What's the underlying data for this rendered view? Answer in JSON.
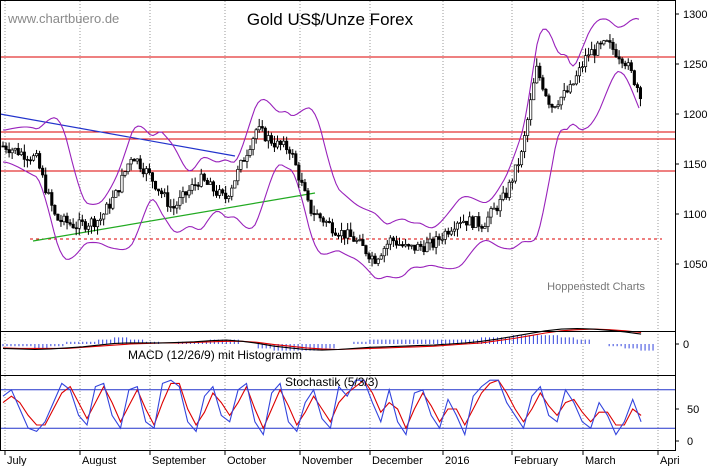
{
  "header": {
    "watermark": "www.chartbuero.de",
    "title": "Gold US$/Unze Forex"
  },
  "source_label": "Hoppenstedt Charts",
  "macd": {
    "label": "MACD (12/26/9) mit Histogramm",
    "tick_labels": [
      "0"
    ]
  },
  "stochastic": {
    "label": "Stochastik (5/3/3)",
    "tick_labels": [
      "50",
      "0"
    ]
  },
  "colors": {
    "candles": "#000000",
    "bollinger": "#9922bb",
    "resistance": "#dd0000",
    "downtrend": "#2233cc",
    "uptrend": "#22aa22",
    "macd_line": "#000000",
    "signal_line": "#dd0000",
    "histogram": "#3344dd",
    "stoch_k": "#3344dd",
    "stoch_d": "#dd0000",
    "stoch_levels": "#2233cc",
    "grid": "#999999"
  },
  "chart_data": [
    {
      "type": "candlestick",
      "title": "Gold US$/Unze Forex",
      "y_ticks": [
        1050,
        1100,
        1150,
        1200,
        1250,
        1300
      ],
      "ylim": [
        1020,
        1310
      ],
      "x_ticks": [
        "July",
        "August",
        "September",
        "October",
        "November",
        "December",
        "2016",
        "February",
        "March",
        "Apri"
      ],
      "horizontal_lines": [
        1257,
        1182,
        1175,
        1143
      ],
      "support_dashed": 1075,
      "trend_down": {
        "from": [
          "July",
          1200
        ],
        "to": [
          "October",
          1158
        ]
      },
      "trend_up": {
        "from": [
          "July",
          1073
        ],
        "to": [
          "November",
          1121
        ]
      },
      "price_path": [
        [
          "2015-07-01",
          1168
        ],
        [
          "2015-07-14",
          1155
        ],
        [
          "2015-07-22",
          1095
        ],
        [
          "2015-07-31",
          1088
        ],
        [
          "2015-08-10",
          1095
        ],
        [
          "2015-08-17",
          1120
        ],
        [
          "2015-08-24",
          1160
        ],
        [
          "2015-09-01",
          1138
        ],
        [
          "2015-09-10",
          1105
        ],
        [
          "2015-09-21",
          1135
        ],
        [
          "2015-10-01",
          1115
        ],
        [
          "2015-10-06",
          1140
        ],
        [
          "2015-10-14",
          1185
        ],
        [
          "2015-10-22",
          1170
        ],
        [
          "2015-10-28",
          1165
        ],
        [
          "2015-11-05",
          1105
        ],
        [
          "2015-11-16",
          1085
        ],
        [
          "2015-11-24",
          1075
        ],
        [
          "2015-12-03",
          1055
        ],
        [
          "2015-12-10",
          1075
        ],
        [
          "2015-12-17",
          1065
        ],
        [
          "2015-12-28",
          1070
        ],
        [
          "2016-01-08",
          1095
        ],
        [
          "2016-01-19",
          1090
        ],
        [
          "2016-01-29",
          1118
        ],
        [
          "2016-02-05",
          1160
        ],
        [
          "2016-02-11",
          1245
        ],
        [
          "2016-02-17",
          1208
        ],
        [
          "2016-02-25",
          1225
        ],
        [
          "2016-03-03",
          1260
        ],
        [
          "2016-03-11",
          1270
        ],
        [
          "2016-03-18",
          1255
        ],
        [
          "2016-03-25",
          1220
        ]
      ]
    },
    {
      "type": "line",
      "title": "MACD (12/26/9) mit Histogramm",
      "y_ticks": [
        0
      ],
      "macd_path": [
        -8,
        -9,
        -10,
        -9,
        -7,
        -5,
        -2,
        1,
        2,
        2,
        2,
        3,
        4,
        6,
        7,
        5,
        1,
        -4,
        -7,
        -10,
        -11,
        -10,
        -8,
        -6,
        -5,
        -4,
        -3,
        -2,
        0,
        2,
        5,
        9,
        14,
        19,
        24,
        27,
        28,
        27,
        25,
        22,
        18
      ],
      "signal_path": [
        -7,
        -8,
        -8,
        -8,
        -8,
        -6,
        -4,
        -2,
        0,
        1,
        2,
        2,
        3,
        4,
        5,
        5,
        3,
        -1,
        -4,
        -7,
        -9,
        -10,
        -9,
        -8,
        -7,
        -6,
        -5,
        -4,
        -2,
        0,
        2,
        6,
        10,
        15,
        20,
        24,
        26,
        27,
        26,
        24,
        21
      ]
    },
    {
      "type": "line",
      "title": "Stochastik (5/3/3)",
      "y_ticks": [
        0,
        50
      ],
      "levels": [
        80,
        20
      ],
      "k_path": [
        70,
        80,
        50,
        20,
        15,
        30,
        60,
        90,
        80,
        40,
        25,
        85,
        90,
        40,
        20,
        80,
        85,
        30,
        20,
        90,
        95,
        85,
        30,
        15,
        70,
        85,
        40,
        30,
        80,
        90,
        30,
        10,
        75,
        90,
        30,
        15,
        60,
        80,
        35,
        20,
        85,
        70,
        95,
        95,
        60,
        30,
        80,
        30,
        10,
        75,
        80,
        40,
        20,
        65,
        40,
        10,
        70,
        85,
        95,
        95,
        60,
        40,
        20,
        70,
        85,
        40,
        30,
        80,
        60,
        30,
        20,
        60,
        40,
        10,
        30,
        65,
        30
      ],
      "d_path": [
        60,
        70,
        60,
        40,
        25,
        25,
        50,
        75,
        85,
        60,
        35,
        60,
        85,
        60,
        30,
        55,
        80,
        50,
        25,
        60,
        90,
        90,
        50,
        25,
        45,
        75,
        60,
        40,
        60,
        85,
        50,
        20,
        50,
        80,
        55,
        25,
        45,
        70,
        50,
        30,
        60,
        75,
        85,
        95,
        75,
        45,
        60,
        50,
        20,
        50,
        75,
        55,
        30,
        50,
        50,
        25,
        50,
        75,
        90,
        95,
        75,
        50,
        30,
        50,
        75,
        55,
        40,
        60,
        65,
        45,
        30,
        45,
        45,
        25,
        25,
        50,
        40
      ]
    }
  ]
}
